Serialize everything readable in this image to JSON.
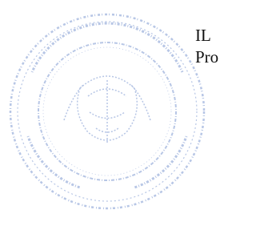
{
  "text": {
    "lines": [
      "IL",
      "Pro"
    ]
  }
}
